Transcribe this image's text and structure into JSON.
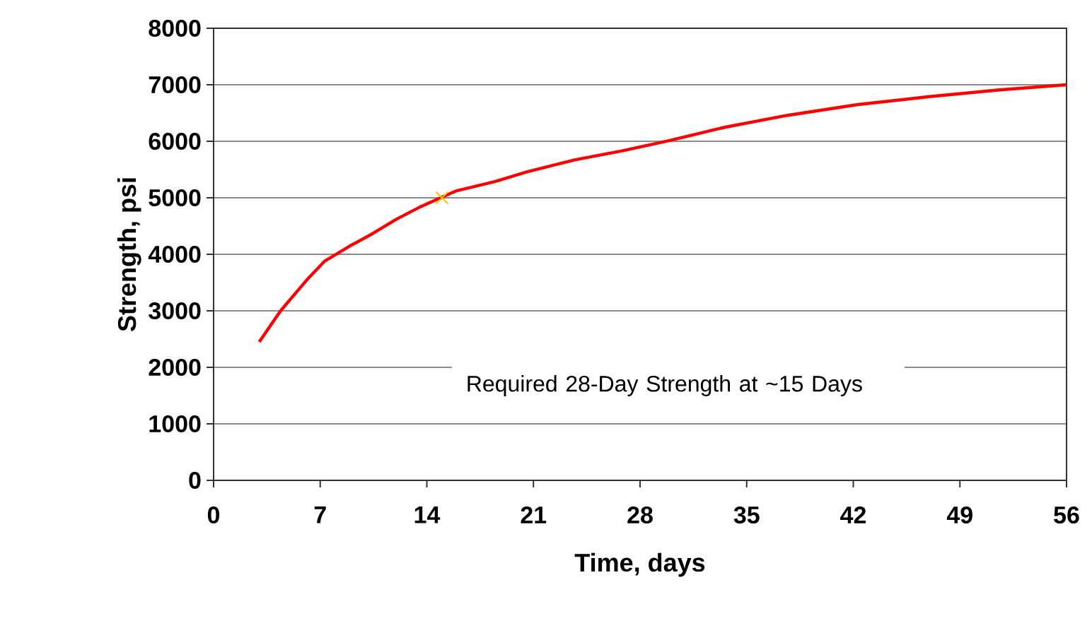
{
  "chart_data": {
    "type": "line",
    "xlabel": "Time, days",
    "ylabel": "Strength, psi",
    "xlim": [
      0,
      56
    ],
    "ylim": [
      0,
      8000
    ],
    "xticks": [
      0,
      7,
      14,
      21,
      28,
      35,
      42,
      49,
      56
    ],
    "yticks": [
      0,
      1000,
      2000,
      3000,
      4000,
      5000,
      6000,
      7000,
      8000
    ],
    "grid": "y",
    "series": [
      {
        "color": "#ff0000",
        "marker": "none",
        "x": [
          3,
          4.4,
          6.1,
          7.3,
          8.9,
          10.4,
          12.0,
          13.5,
          14.9,
          15.9,
          18.5,
          20.6,
          23.7,
          26.8,
          29.9,
          33.6,
          37.7,
          42.3,
          47.0,
          51.6,
          56
        ],
        "values": [
          2450,
          3000,
          3540,
          3880,
          4140,
          4360,
          4620,
          4830,
          5000,
          5120,
          5290,
          5460,
          5670,
          5830,
          6010,
          6250,
          6460,
          6650,
          6790,
          6910,
          7000
        ]
      },
      {
        "type": "scatter",
        "color": "#ffc000",
        "marker": "cross",
        "x": [
          15
        ],
        "values": [
          5000
        ]
      }
    ],
    "annotations": [
      "Required 28-Day Strength at ~15 Days"
    ]
  }
}
